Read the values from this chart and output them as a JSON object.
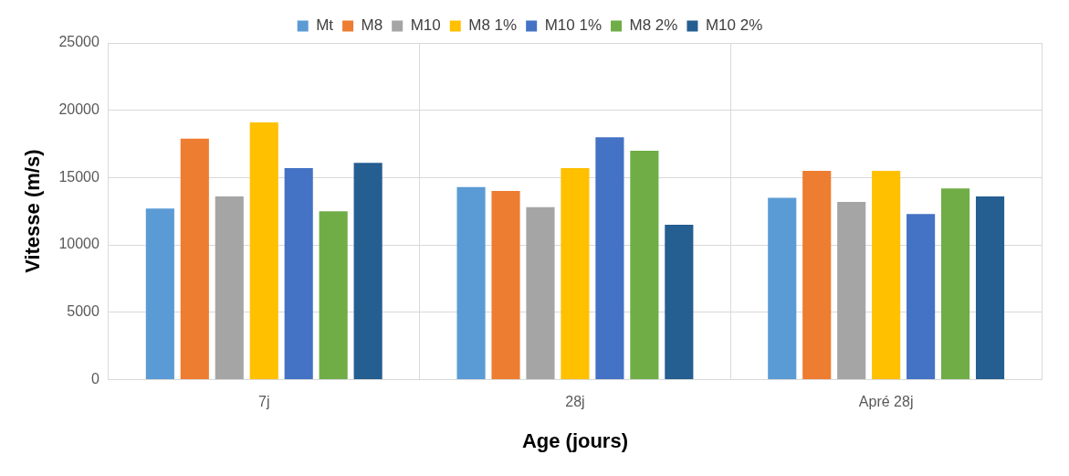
{
  "chart_data": {
    "type": "bar",
    "xlabel": "Age (jours)",
    "ylabel": "Vitesse (m/s)",
    "categories": [
      "7j",
      "28j",
      "Apré 28j"
    ],
    "series": [
      {
        "name": "Mt",
        "color": "#5b9bd5",
        "values": [
          12700,
          14300,
          13500
        ]
      },
      {
        "name": "M8",
        "color": "#ed7d31",
        "values": [
          17900,
          14000,
          15500
        ]
      },
      {
        "name": "M10",
        "color": "#a5a5a5",
        "values": [
          13600,
          12800,
          13200
        ]
      },
      {
        "name": "M8 1%",
        "color": "#ffc000",
        "values": [
          19100,
          15700,
          15500
        ]
      },
      {
        "name": "M10 1%",
        "color": "#4472c4",
        "values": [
          15700,
          18000,
          12300
        ]
      },
      {
        "name": "M8 2%",
        "color": "#70ad47",
        "values": [
          12500,
          17000,
          14200
        ]
      },
      {
        "name": "M10 2%",
        "color": "#255e91",
        "values": [
          16100,
          11500,
          13600
        ]
      }
    ],
    "ylim": [
      0,
      25000
    ],
    "yticks": [
      0,
      5000,
      10000,
      15000,
      20000,
      25000
    ],
    "grid": true,
    "legend": "top"
  }
}
